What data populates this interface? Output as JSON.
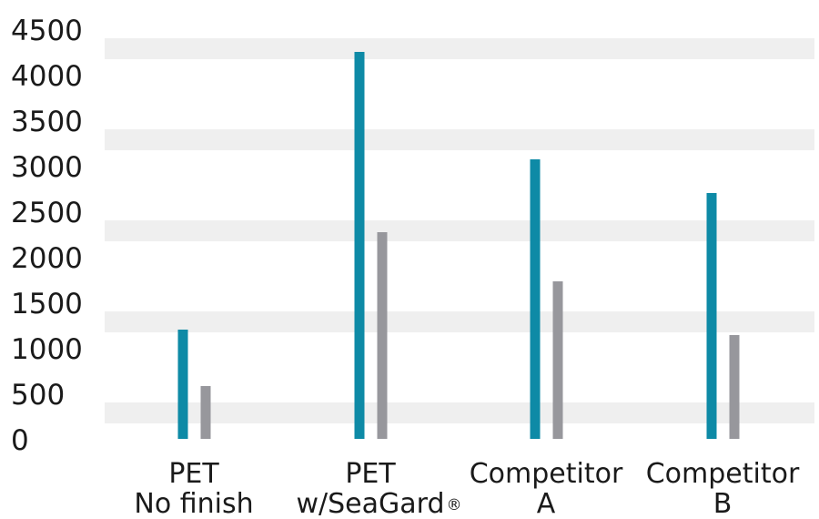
{
  "chart_data": {
    "type": "bar",
    "title": "",
    "xlabel": "",
    "ylabel": "",
    "ylim": [
      0,
      4500
    ],
    "yticks": [
      "0",
      "500",
      "1000",
      "1500",
      "2000",
      "2500",
      "3000",
      "3500",
      "4000",
      "4500"
    ],
    "categories": [
      {
        "line1": "PET",
        "line2": "No finish",
        "sup": ""
      },
      {
        "line1": "PET",
        "line2": "w/SeaGard",
        "sup": "®"
      },
      {
        "line1": "Competitor",
        "line2": "A",
        "sup": ""
      },
      {
        "line1": "Competitor",
        "line2": "B",
        "sup": ""
      }
    ],
    "series": [
      {
        "color": "#0e8aa6",
        "values": [
          1200,
          4250,
          3070,
          2700
        ]
      },
      {
        "color": "#97979c",
        "values": [
          580,
          2270,
          1730,
          1140
        ]
      }
    ],
    "band_color": "#efefef",
    "grid": "alternating horizontal bands",
    "legend": "none"
  }
}
